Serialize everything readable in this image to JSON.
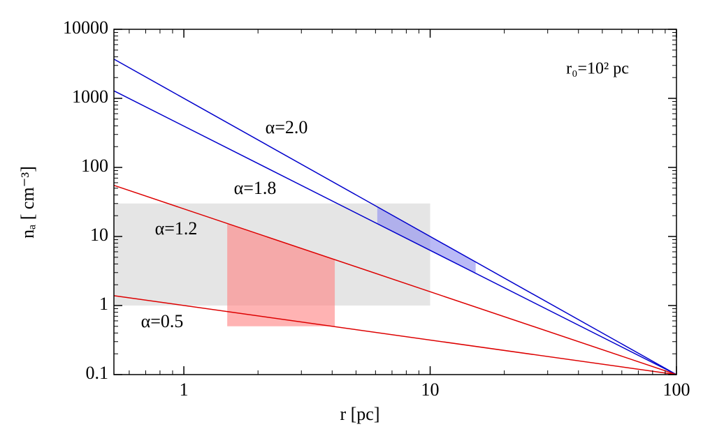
{
  "chart_data": {
    "type": "line",
    "x_label": "r  [pc]",
    "y_label": "nₐ [ cm⁻³]",
    "annotation": "r₀=10² pc",
    "xscale": "log",
    "yscale": "log",
    "xlim": [
      0.52,
      100
    ],
    "ylim": [
      0.1,
      10000
    ],
    "xticks": [
      1,
      10,
      100
    ],
    "yticks": [
      0.1,
      1,
      10,
      100,
      1000,
      10000
    ],
    "series": [
      {
        "name": "α=2.0",
        "color": "#0000cc",
        "x": [
          0.52,
          100
        ],
        "values": [
          3700,
          0.1
        ]
      },
      {
        "name": "α=1.8",
        "color": "#0000cc",
        "x": [
          0.52,
          100
        ],
        "values": [
          1285,
          0.1
        ]
      },
      {
        "name": "α=1.2",
        "color": "#dd0000",
        "x": [
          0.52,
          100
        ],
        "values": [
          55,
          0.1
        ]
      },
      {
        "name": "α=0.5",
        "color": "#dd0000",
        "x": [
          0.52,
          100
        ],
        "values": [
          1.39,
          0.1
        ]
      }
    ],
    "shaded_regions": [
      {
        "color": "#e5e5e5",
        "x": [
          0.52,
          10,
          10,
          0.52
        ],
        "y": [
          1,
          1,
          30,
          30
        ]
      },
      {
        "color": "#ff8080",
        "x": [
          1.5,
          1.5,
          4.1,
          4.1
        ],
        "y": [
          0.5,
          15.4,
          4.6,
          0.5
        ]
      },
      {
        "color": "#8c8cf0",
        "x": [
          6.1,
          15.3,
          15.3,
          6.1
        ],
        "y": [
          26.9,
          4.27,
          2.94,
          15.3
        ]
      }
    ]
  }
}
